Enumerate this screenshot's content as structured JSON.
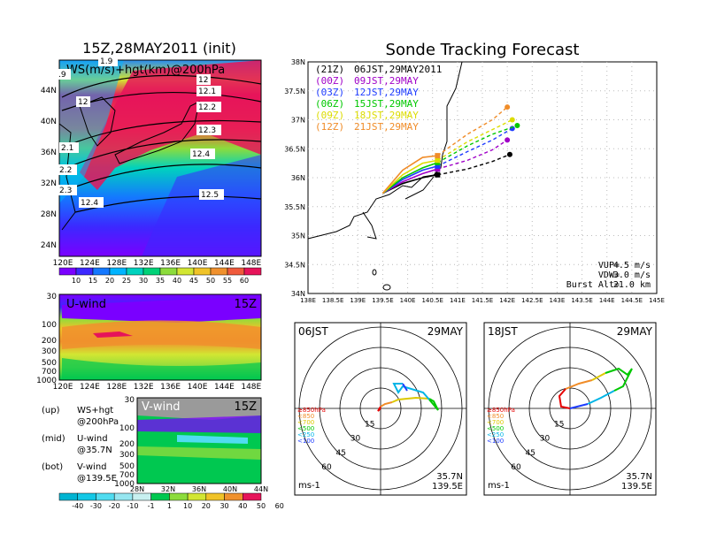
{
  "left_title": "15Z,28MAY2011 (init)",
  "main_title": "Sonde Tracking Forecast",
  "top_map": {
    "label": "WS(m/s)+hgt(km)@200hPa",
    "lat_ticks": [
      "44N",
      "40N",
      "36N",
      "32N",
      "28N",
      "24N"
    ],
    "lon_ticks": [
      "120E",
      "124E",
      "128E",
      "132E",
      "136E",
      "140E",
      "144E",
      "148E"
    ],
    "contour_labels": [
      "12",
      "12.1",
      "12.2",
      "12.3",
      "12.4",
      "12.5",
      "12",
      "12.4",
      "2.1",
      "2.2",
      "2.3",
      ".9",
      "1.9"
    ]
  },
  "colorbar_top": {
    "labels": [
      "10",
      "15",
      "20",
      "25",
      "30",
      "35",
      "40",
      "45",
      "50",
      "55",
      "60"
    ],
    "colors": [
      "#7a00ff",
      "#3c28ff",
      "#1478ff",
      "#00b4ff",
      "#00d2be",
      "#00d278",
      "#8cdc3c",
      "#d2e632",
      "#f0c328",
      "#f0912d",
      "#f05a3c",
      "#e6145a"
    ]
  },
  "u_panel": {
    "label": "U-wind",
    "time": "15Z",
    "y_ticks": [
      "30",
      "100",
      "200",
      "300",
      "500",
      "700",
      "1000"
    ],
    "x_ticks": [
      "120E",
      "124E",
      "128E",
      "132E",
      "136E",
      "140E",
      "144E",
      "148E"
    ]
  },
  "v_panel": {
    "label": "V-wind",
    "time": "15Z",
    "y_ticks": [
      "30",
      "100",
      "200",
      "300",
      "500",
      "700",
      "1000"
    ],
    "x_ticks": [
      "28N",
      "32N",
      "36N",
      "40N",
      "44N"
    ]
  },
  "legend_notes": [
    {
      "key": "(up)",
      "line1": "WS+hgt",
      "line2": "@200hPa"
    },
    {
      "key": "(mid)",
      "line1": "U-wind",
      "line2": "@35.7N"
    },
    {
      "key": "(bot)",
      "line1": "V-wind",
      "line2": "@139.5E"
    }
  ],
  "colorbar_bottom": {
    "labels": [
      "-40",
      "-30",
      "-20",
      "-10",
      "-1",
      "1",
      "10",
      "20",
      "30",
      "40",
      "50",
      "60"
    ],
    "colors": [
      "#00b4d2",
      "#14c8e6",
      "#50dcf0",
      "#96e6f0",
      "#c8f0f0",
      "#00c850",
      "#8cdc3c",
      "#d2e632",
      "#f0c328",
      "#f0912d",
      "#e6145a"
    ]
  },
  "track_map": {
    "lat_ticks": [
      "38N",
      "37.5N",
      "37N",
      "36.5N",
      "36N",
      "35.5N",
      "35N",
      "34.5N",
      "34N"
    ],
    "lon_ticks": [
      "138E",
      "138.5E",
      "139E",
      "139.5E",
      "140E",
      "140.5E",
      "141E",
      "141.5E",
      "142E",
      "142.5E",
      "143E",
      "143.5E",
      "144E",
      "144.5E",
      "145E"
    ],
    "legend": [
      {
        "code": "(21Z)",
        "text": "06JST,29MAY2011",
        "color": "#000000"
      },
      {
        "code": "(00Z)",
        "text": "09JST,29MAY",
        "color": "#a000c8"
      },
      {
        "code": "(03Z)",
        "text": "12JST,29MAY",
        "color": "#1e3cff"
      },
      {
        "code": "(06Z)",
        "text": "15JST,29MAY",
        "color": "#00c800"
      },
      {
        "code": "(09Z)",
        "text": "18JST,29MAY",
        "color": "#dcdc00"
      },
      {
        "code": "(12Z)",
        "text": "21JST,29MAY",
        "color": "#f08c28"
      }
    ],
    "params": [
      {
        "name": "VUP=",
        "value": "4.5 m/s"
      },
      {
        "name": "VDW=",
        "value": "-3.0 m/s"
      },
      {
        "name": "Burst Alt=",
        "value": "21.0 km"
      }
    ],
    "launch": {
      "lon": 139.5,
      "lat": 35.7
    }
  },
  "hodo_left": {
    "time": "06JST",
    "date": "29MAY",
    "ring_labels": [
      "15",
      "30",
      "45",
      "60"
    ],
    "level_legend": [
      "≥850hPa",
      "<850",
      "<700",
      "<500",
      "<250",
      "<100"
    ],
    "level_colors": [
      "#e60000",
      "#f08c28",
      "#dcc800",
      "#00c800",
      "#00b4e6",
      "#1e3cff"
    ],
    "loc1": "35.7N",
    "loc2": "139.5E",
    "unit": "ms-1"
  },
  "hodo_right": {
    "time": "18JST",
    "date": "29MAY",
    "ring_labels": [
      "15",
      "30",
      "45",
      "60"
    ],
    "level_legend": [
      "≥850hPa",
      "<850",
      "<700",
      "<500",
      "<250",
      "<100"
    ],
    "level_colors": [
      "#e60000",
      "#f08c28",
      "#dcc800",
      "#00c800",
      "#00b4e6",
      "#1e3cff"
    ],
    "loc1": "35.7N",
    "loc2": "139.5E",
    "unit": "ms-1"
  },
  "chart_data": {
    "type": "line",
    "x": [
      139.5,
      142.0
    ],
    "xlim": [
      138,
      145
    ],
    "ylim": [
      34,
      38
    ],
    "series": [
      {
        "name": "06JST,29MAY2011",
        "color": "#000000",
        "points": [
          [
            139.5,
            35.73
          ],
          [
            139.9,
            35.9
          ],
          [
            140.3,
            36.0
          ],
          [
            140.6,
            36.05
          ],
          [
            141.2,
            36.15
          ],
          [
            141.7,
            36.28
          ],
          [
            142.05,
            36.4
          ]
        ]
      },
      {
        "name": "09JST,29MAY",
        "color": "#a000c8",
        "points": [
          [
            139.5,
            35.73
          ],
          [
            139.9,
            35.93
          ],
          [
            140.3,
            36.07
          ],
          [
            140.6,
            36.15
          ],
          [
            141.2,
            36.3
          ],
          [
            141.7,
            36.48
          ],
          [
            142.0,
            36.65
          ]
        ]
      },
      {
        "name": "12JST,29MAY",
        "color": "#1e3cff",
        "points": [
          [
            139.5,
            35.73
          ],
          [
            139.9,
            35.97
          ],
          [
            140.3,
            36.13
          ],
          [
            140.6,
            36.2
          ],
          [
            141.2,
            36.45
          ],
          [
            141.7,
            36.65
          ],
          [
            142.1,
            36.85
          ]
        ]
      },
      {
        "name": "15JST,29MAY",
        "color": "#00c800",
        "points": [
          [
            139.5,
            35.73
          ],
          [
            139.9,
            36.0
          ],
          [
            140.3,
            36.17
          ],
          [
            140.6,
            36.26
          ],
          [
            141.2,
            36.55
          ],
          [
            141.7,
            36.75
          ],
          [
            142.2,
            36.9
          ]
        ]
      },
      {
        "name": "18JST,29MAY",
        "color": "#dcdc00",
        "points": [
          [
            139.5,
            35.73
          ],
          [
            139.9,
            36.05
          ],
          [
            140.3,
            36.25
          ],
          [
            140.6,
            36.3
          ],
          [
            141.2,
            36.62
          ],
          [
            141.7,
            36.83
          ],
          [
            142.1,
            37.0
          ]
        ]
      },
      {
        "name": "21JST,29MAY",
        "color": "#f08c28",
        "points": [
          [
            139.5,
            35.73
          ],
          [
            139.9,
            36.13
          ],
          [
            140.3,
            36.35
          ],
          [
            140.6,
            36.38
          ],
          [
            141.2,
            36.75
          ],
          [
            141.7,
            37.0
          ],
          [
            142.0,
            37.22
          ]
        ]
      }
    ]
  }
}
